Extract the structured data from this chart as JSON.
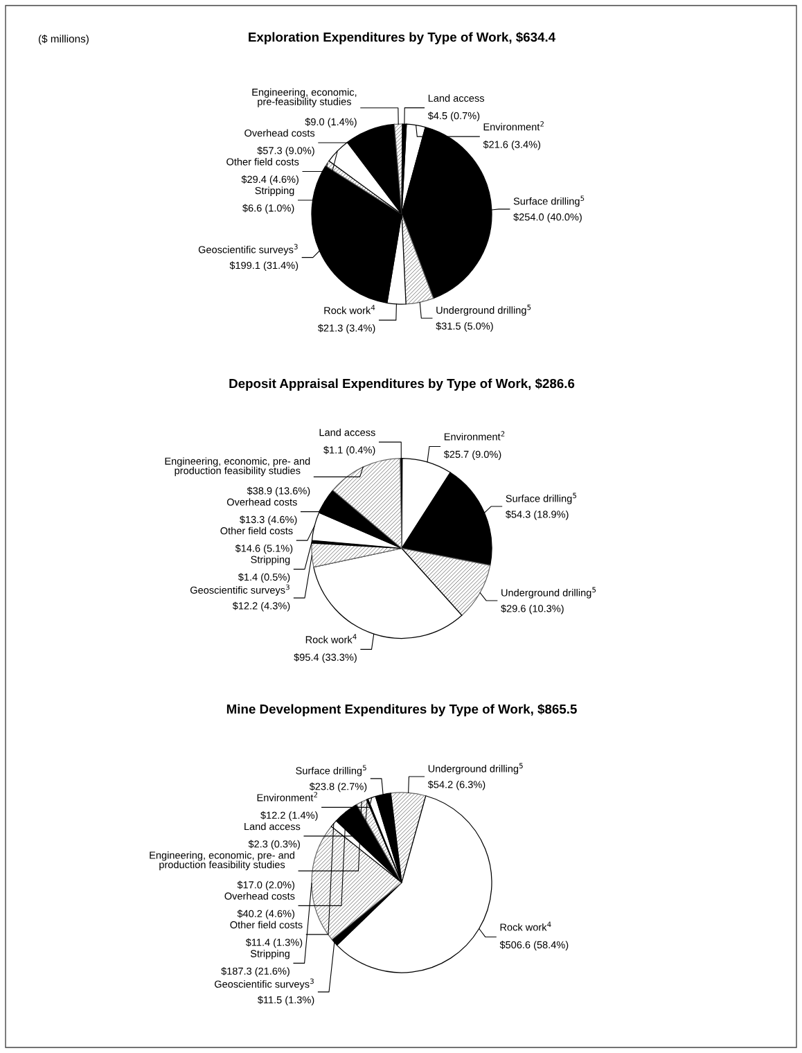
{
  "chart_data": [
    {
      "type": "pie",
      "title": "Exploration Expenditures by Type of Work, $634.4",
      "annotations": [
        "($ millions)"
      ],
      "categories": [
        "Environment$^{2}$",
        "Surface drilling$^{5}$",
        "Underground drilling$^{5}$",
        "Rock work$^{4}$",
        "Geoscientific surveys$^{3}$",
        "Stripping",
        "Other field costs",
        "Overhead costs",
        "Engineering, economic,\npre-feasibility studies",
        "Land access"
      ],
      "values": [
        21.6,
        254.0,
        31.5,
        21.3,
        199.1,
        6.6,
        29.4,
        57.3,
        9.0,
        4.5
      ],
      "value_labels": [
        "$21.6 (3.4%)",
        "$254.0 (40.0%)",
        "$31.5 (5.0%)",
        "$21.3 (3.4%)",
        "$199.1 (31.4%)",
        "$6.6 (1.0%)",
        "$29.4 (4.6%)",
        "$57.3 (9.0%)",
        "$9.0 (1.4%)",
        "$4.5 (0.7%)"
      ],
      "colors": [
        "#ffffff",
        "#000000",
        "#666666",
        "#ffffff",
        "#000000",
        "#666666",
        "#ffffff",
        "#000000",
        "#666666",
        "#000000"
      ]
    },
    {
      "type": "pie",
      "title": "Deposit Appraisal Expenditures by Type of Work, $286.6",
      "categories": [
        "Land access",
        "Environment$^{2}$",
        "Surface drilling$^{5}$",
        "Underground drilling$^{5}$",
        "Rock work$^{4}$",
        "Geoscientific surveys$^{3}$",
        "Stripping",
        "Other field costs",
        "Overhead costs",
        "Engineering, economic, pre- and\nproduction feasibility studies"
      ],
      "values": [
        1.1,
        25.7,
        54.3,
        29.6,
        95.4,
        12.2,
        1.4,
        14.6,
        13.3,
        38.9
      ],
      "value_labels": [
        "$1.1 (0.4%)",
        "$25.7 (9.0%)",
        "$54.3 (18.9%)",
        "$29.6 (10.3%)",
        "$95.4 (33.3%)",
        "$12.2 (4.3%)",
        "$1.4 (0.5%)",
        "$14.6 (5.1%)",
        "$13.3 (4.6%)",
        "$38.9 (13.6%)"
      ],
      "colors": [
        "#000000",
        "#ffffff",
        "#000000",
        "#666666",
        "#ffffff",
        "#666666",
        "#000000",
        "#ffffff",
        "#000000",
        "#666666"
      ]
    },
    {
      "type": "pie",
      "title": "Mine Development Expenditures by Type of Work, $865.5",
      "categories": [
        "Underground drilling$^{5}$",
        "Rock work$^{4}$",
        "Geoscientific surveys$^{3}$",
        "Stripping",
        "Other field costs",
        "Overhead costs",
        "Engineering, economic, pre- and\nproduction feasibility studies",
        "Land access",
        "Environment$^{2}$",
        "Surface drilling$^{5}$"
      ],
      "values": [
        54.2,
        506.6,
        11.5,
        187.3,
        11.4,
        40.2,
        17.0,
        2.3,
        12.2,
        23.8
      ],
      "value_labels": [
        "$54.2 (6.3%)",
        "$506.6 (58.4%)",
        "$11.5 (1.3%)",
        "$187.3 (21.6%)",
        "$11.4 (1.3%)",
        "$40.2 (4.6%)",
        "$17.0 (2.0%)",
        "$2.3 (0.3%)",
        "$12.2 (1.4%)",
        "$23.8 (2.7%)"
      ],
      "colors": [
        "#666666",
        "#ffffff",
        "#000000",
        "#666666",
        "#ffffff",
        "#000000",
        "#666666",
        "#000000",
        "#ffffff",
        "#000000"
      ]
    }
  ]
}
